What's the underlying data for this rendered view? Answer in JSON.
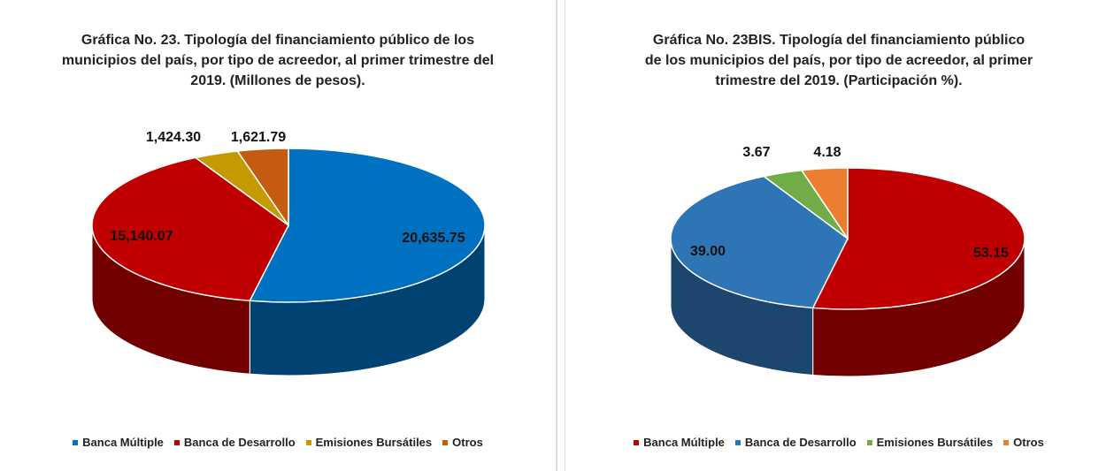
{
  "chart_data": [
    {
      "type": "pie",
      "title": "Gráfica No. 23. Tipología del financiamiento público de los municipios del país, por tipo de acreedor, al primer trimestre del 2019. (Millones de pesos).",
      "categories": [
        "Banca Múltiple",
        "Banca de Desarrollo",
        "Emisiones Bursátiles",
        "Otros"
      ],
      "values": [
        20635.75,
        15140.07,
        1424.3,
        1621.79
      ],
      "value_labels": [
        "20,635.75",
        "15,140.07",
        "1,424.30",
        "1,621.79"
      ],
      "colors": [
        "#0070c0",
        "#c00000",
        "#c59a00",
        "#c55a11"
      ]
    },
    {
      "type": "pie",
      "title": "Gráfica No. 23BIS. Tipología del financiamiento público de los municipios del país, por tipo de acreedor, al primer trimestre del 2019. (Participación %).",
      "categories": [
        "Banca Múltiple",
        "Banca de Desarrollo",
        "Emisiones Bursátiles",
        "Otros"
      ],
      "values": [
        53.15,
        39.0,
        3.67,
        4.18
      ],
      "value_labels": [
        "53.15",
        "39.00",
        "3.67",
        "4.18"
      ],
      "colors": [
        "#c00000",
        "#2e75b6",
        "#70ad47",
        "#ed7d31"
      ]
    }
  ]
}
